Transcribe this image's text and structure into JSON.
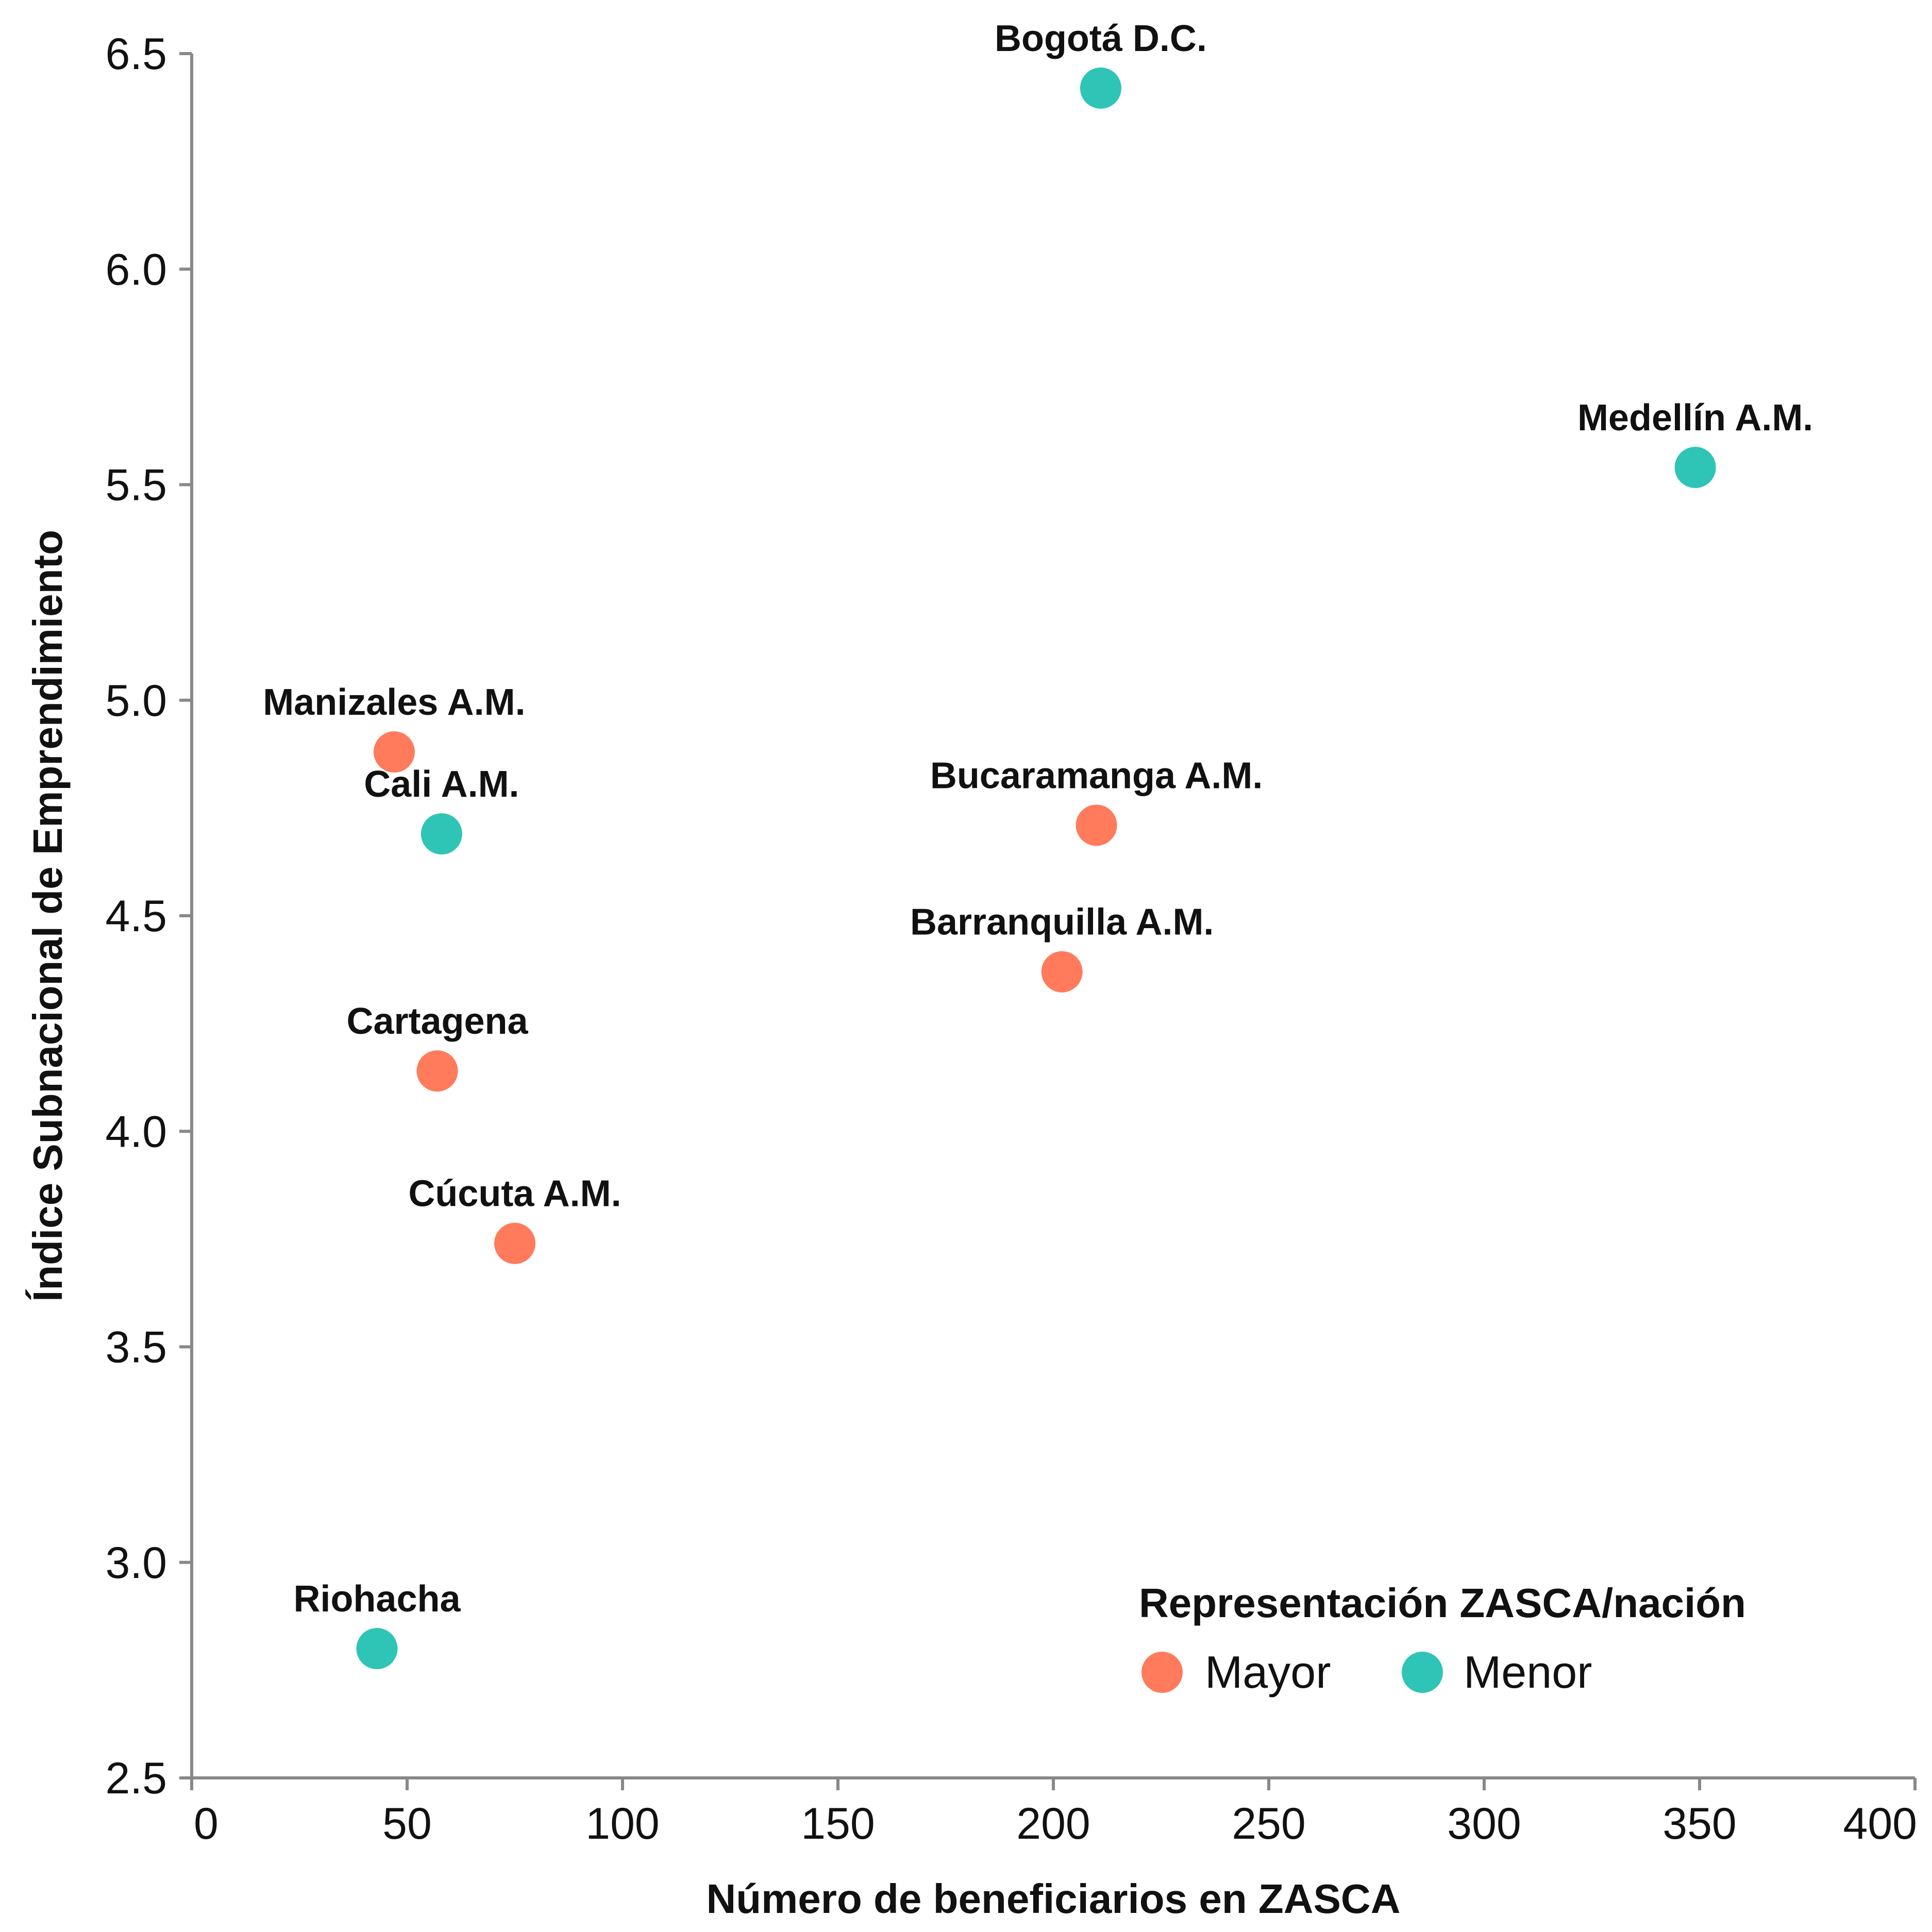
{
  "chart_data": {
    "type": "scatter",
    "xlabel": "Número de beneficiarios en ZASCA",
    "ylabel": "Índice Subnacional de Emprendimiento",
    "xlim": [
      0,
      400
    ],
    "ylim": [
      2.5,
      6.5
    ],
    "x_ticks": [
      0,
      50,
      100,
      150,
      200,
      250,
      300,
      350,
      400
    ],
    "y_ticks": [
      2.5,
      3.0,
      3.5,
      4.0,
      4.5,
      5.0,
      5.5,
      6.0,
      6.5
    ],
    "x_tick_labels": [
      "0",
      "50",
      "100",
      "150",
      "200",
      "250",
      "300",
      "350",
      "400"
    ],
    "y_tick_labels": [
      "2.5",
      "3.0",
      "3.5",
      "4.0",
      "4.5",
      "5.0",
      "5.5",
      "6.0",
      "6.5"
    ],
    "grid": false,
    "legend": {
      "title": "Representación ZASCA/nación",
      "placement": "bottom-right",
      "entries": [
        {
          "label": "Mayor",
          "color": "#FF7B5C"
        },
        {
          "label": "Menor",
          "color": "#2EC4B6"
        }
      ]
    },
    "points": [
      {
        "label": "Bogotá D.C.",
        "x": 211,
        "y": 6.42,
        "group": "Menor"
      },
      {
        "label": "Medellín A.M.",
        "x": 349,
        "y": 5.54,
        "group": "Menor"
      },
      {
        "label": "Manizales A.M.",
        "x": 47,
        "y": 4.88,
        "group": "Mayor"
      },
      {
        "label": "Cali A.M.",
        "x": 58,
        "y": 4.69,
        "group": "Menor"
      },
      {
        "label": "Bucaramanga A.M.",
        "x": 210,
        "y": 4.71,
        "group": "Mayor"
      },
      {
        "label": "Barranquilla A.M.",
        "x": 202,
        "y": 4.37,
        "group": "Mayor"
      },
      {
        "label": "Cartagena",
        "x": 57,
        "y": 4.14,
        "group": "Mayor"
      },
      {
        "label": "Cúcuta A.M.",
        "x": 75,
        "y": 3.74,
        "group": "Mayor"
      },
      {
        "label": "Riohacha",
        "x": 43,
        "y": 2.8,
        "group": "Menor"
      }
    ]
  }
}
